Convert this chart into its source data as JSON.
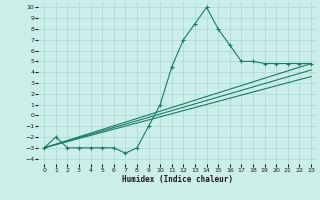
{
  "xlabel": "Humidex (Indice chaleur)",
  "bg_color": "#cceee8",
  "grid_color": "#aaddd6",
  "line_color": "#1a7a6a",
  "xlim": [
    -0.5,
    23.5
  ],
  "ylim": [
    -4.5,
    10.5
  ],
  "xticks": [
    0,
    1,
    2,
    3,
    4,
    5,
    6,
    7,
    8,
    9,
    10,
    11,
    12,
    13,
    14,
    15,
    16,
    17,
    18,
    19,
    20,
    21,
    22,
    23
  ],
  "yticks": [
    -4,
    -3,
    -2,
    -1,
    0,
    1,
    2,
    3,
    4,
    5,
    6,
    7,
    8,
    9,
    10
  ],
  "main_x": [
    0,
    1,
    2,
    3,
    4,
    5,
    6,
    7,
    8,
    9,
    10,
    11,
    12,
    13,
    14,
    15,
    16,
    17,
    18,
    19,
    20,
    21,
    22,
    23
  ],
  "main_y": [
    -3,
    -2,
    -3,
    -3,
    -3,
    -3,
    -3,
    -3.5,
    -3,
    -1,
    1,
    4.5,
    7,
    8.5,
    10,
    8,
    6.5,
    5,
    5,
    4.8,
    4.8,
    4.8,
    4.8,
    4.8
  ],
  "line2_x": [
    0,
    23
  ],
  "line2_y": [
    -3.0,
    4.8
  ],
  "line3_x": [
    0,
    23
  ],
  "line3_y": [
    -3.0,
    4.2
  ],
  "line4_x": [
    0,
    23
  ],
  "line4_y": [
    -3.0,
    3.6
  ]
}
